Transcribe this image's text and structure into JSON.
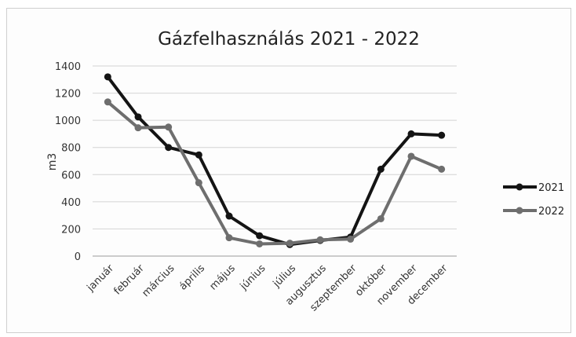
{
  "chart_data": {
    "type": "line",
    "title": "Gázfelhasználás 2021 - 2022",
    "xlabel": "",
    "ylabel": "m3",
    "ylim": [
      0,
      1400
    ],
    "yticks": [
      0,
      200,
      400,
      600,
      800,
      1000,
      1200,
      1400
    ],
    "grid": true,
    "legend_position": "right",
    "categories": [
      "január",
      "február",
      "március",
      "április",
      "május",
      "június",
      "július",
      "augusztus",
      "szeptember",
      "október",
      "november",
      "december"
    ],
    "series": [
      {
        "name": "2021",
        "color": "#141414",
        "values": [
          1320,
          1025,
          800,
          745,
          295,
          150,
          85,
          115,
          140,
          640,
          900,
          890
        ]
      },
      {
        "name": "2022",
        "color": "#6e6e6e",
        "values": [
          1135,
          945,
          950,
          540,
          135,
          90,
          95,
          120,
          125,
          275,
          735,
          640
        ]
      }
    ]
  }
}
